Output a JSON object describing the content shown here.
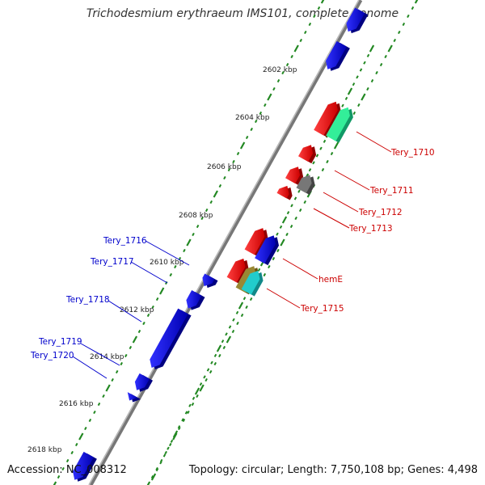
{
  "title": "Trichodesmium erythraeum IMS101, complete genome",
  "footer": {
    "accession": "Accession: NC_008312",
    "summary": "Topology: circular; Length: 7,750,108 bp; Genes: 4,498"
  },
  "colors": {
    "forward_label": "#cc0000",
    "reverse_label": "#0000cc",
    "ticks": "#228822",
    "backbone": "#888888"
  },
  "scale_labels": [
    "2602 kbp",
    "2604 kbp",
    "2606 kbp",
    "2608 kbp",
    "2610 kbp",
    "2612 kbp",
    "2614 kbp",
    "2616 kbp",
    "2618 kbp"
  ],
  "forward_genes": [
    "Tery_1710",
    "Tery_1711",
    "Tery_1712",
    "Tery_1713",
    "hemE",
    "Tery_1715"
  ],
  "reverse_genes": [
    "Tery_1716",
    "Tery_1717",
    "Tery_1718",
    "Tery_1719",
    "Tery_1720"
  ]
}
